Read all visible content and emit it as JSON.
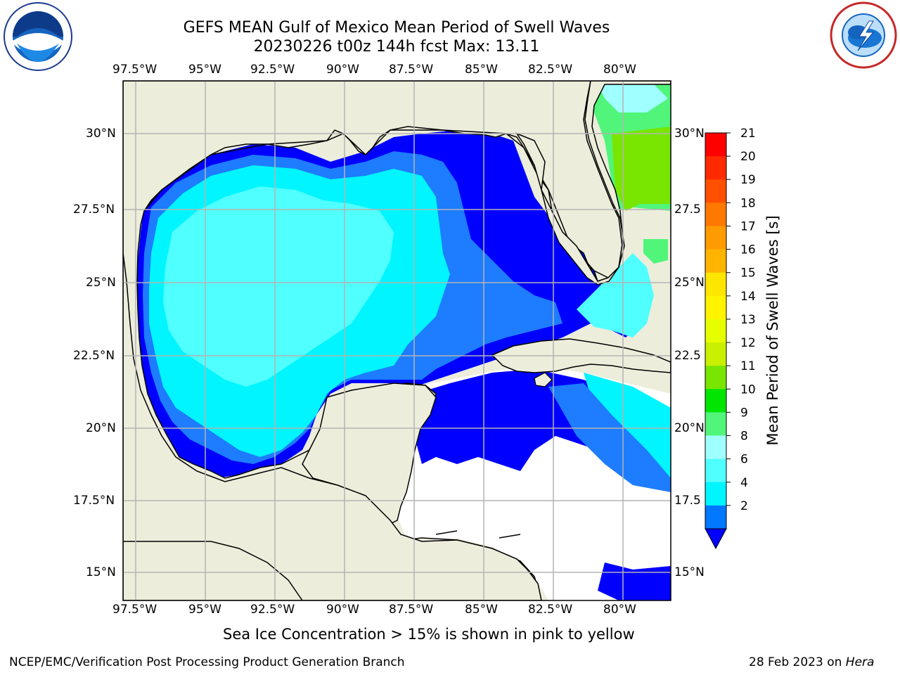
{
  "title_line1": "GEFS MEAN Gulf of Mexico Mean Period of Swell Waves",
  "title_line2": "20230226 t00z 144h fcst   Max: 13.11",
  "lon_labels": [
    "97.5°W",
    "95°W",
    "92.5°W",
    "90°W",
    "87.5°W",
    "85°W",
    "82.5°W",
    "80°W"
  ],
  "lat_labels_left": [
    "30°N",
    "27.5°N",
    "25°N",
    "22.5°N",
    "20°N",
    "17.5°N",
    "15°N"
  ],
  "lat_labels_right": [
    "30°N",
    "27.5",
    "25°N",
    "22.5",
    "20°N",
    "17.5",
    "15°N"
  ],
  "colorbar": {
    "label": "Mean Period of Swell Waves [s]",
    "ticks": [
      "21",
      "20",
      "19",
      "18",
      "17",
      "16",
      "15",
      "14",
      "13",
      "12",
      "11",
      "10",
      "9",
      "8",
      "6",
      "4",
      "2"
    ],
    "colors": [
      "#ff0000",
      "#ff2a00",
      "#ff5000",
      "#ff7800",
      "#ff9b00",
      "#ffb400",
      "#ffe600",
      "#fff300",
      "#e6ff00",
      "#c8f000",
      "#78e600",
      "#00e600",
      "#50f57a",
      "#a0ffff",
      "#50ffff",
      "#00f5ff",
      "#0078ff"
    ],
    "underflow_color": "#0000ff"
  },
  "colors": {
    "land": "#ededdc",
    "ocean_shade1": "#0000ff",
    "ocean_shade2": "#1e7cff",
    "ocean_shade3": "#00f5ff",
    "ocean_shade4": "#50ffff",
    "ocean_green": "#50f57a",
    "pacific_green": "#78e600",
    "pacific_yellow": "#e6ff00"
  },
  "footer_left": "NCEP/EMC/Verification Post Processing Product Generation Branch",
  "footer_center": "Sea Ice Concentration > 15% is shown in pink to yellow",
  "footer_date": "28 Feb 2023 on ",
  "footer_machine": "Hera",
  "logo_left": "noaa-logo",
  "logo_right": "nws-logo"
}
